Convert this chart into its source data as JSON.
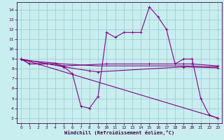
{
  "xlabel": "Windchill (Refroidissement éolien,°C)",
  "bg_color": "#c8eef0",
  "grid_color": "#9dcfcf",
  "line_color": "#880088",
  "xlim": [
    -0.5,
    23.5
  ],
  "ylim": [
    2.5,
    14.8
  ],
  "yticks": [
    3,
    4,
    5,
    6,
    7,
    8,
    9,
    10,
    11,
    12,
    13,
    14
  ],
  "xticks": [
    0,
    1,
    2,
    3,
    4,
    5,
    6,
    7,
    8,
    9,
    10,
    11,
    12,
    13,
    14,
    15,
    16,
    17,
    18,
    19,
    20,
    21,
    22,
    23
  ],
  "curve1_x": [
    0,
    1,
    2,
    3,
    4,
    5,
    6,
    7,
    8,
    9,
    10,
    11,
    12,
    13,
    14,
    15,
    16,
    17,
    18,
    19,
    20,
    21,
    22,
    23
  ],
  "curve1_y": [
    9.0,
    8.5,
    8.5,
    8.5,
    8.5,
    8.2,
    7.5,
    4.2,
    4.0,
    5.2,
    11.7,
    11.2,
    11.7,
    11.7,
    11.7,
    14.3,
    13.3,
    12.0,
    8.5,
    9.0,
    9.0,
    5.0,
    3.3,
    3.0
  ],
  "curve2_x": [
    0,
    1,
    2,
    3,
    4,
    5,
    10,
    15,
    19,
    20,
    23
  ],
  "curve2_y": [
    9.0,
    8.5,
    8.5,
    8.5,
    8.5,
    8.3,
    8.5,
    8.5,
    8.5,
    8.5,
    8.3
  ],
  "curve3_x": [
    0,
    23
  ],
  "curve3_y": [
    9.0,
    3.0
  ],
  "curve4_x": [
    0,
    5,
    8,
    9,
    19,
    23
  ],
  "curve4_y": [
    9.0,
    8.2,
    7.8,
    7.7,
    8.2,
    8.1
  ],
  "curve5_x": [
    0,
    5,
    9,
    19,
    23
  ],
  "curve5_y": [
    8.9,
    8.5,
    8.3,
    8.3,
    8.2
  ]
}
